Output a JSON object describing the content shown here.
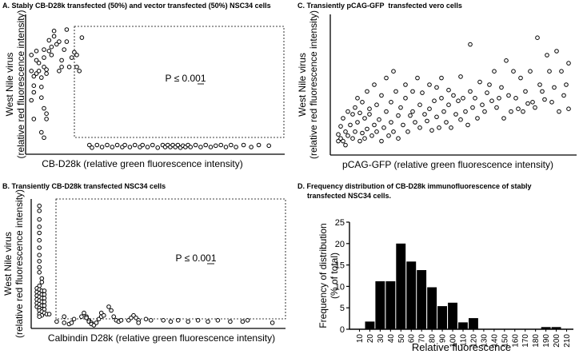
{
  "chart_data": [
    {
      "panel": "A",
      "type": "scatter",
      "title": "A. Stably CB-D28k transfected (50%) and vector transfected (50%) NSC34 cells",
      "xlabel": "CB-D28k (relative green fluorescence intensity)",
      "ylabel": [
        "West Nile virus",
        "(relative red fluorescence intensity)"
      ],
      "annotation": "P ≤ 0.001",
      "xlim": [
        0,
        100
      ],
      "ylim": [
        0,
        100
      ],
      "grid": false,
      "points": [
        [
          1,
          72
        ],
        [
          1,
          60
        ],
        [
          2,
          56
        ],
        [
          2,
          49
        ],
        [
          2,
          44
        ],
        [
          3,
          75
        ],
        [
          3,
          68
        ],
        [
          3,
          58
        ],
        [
          4,
          66
        ],
        [
          4,
          60
        ],
        [
          5,
          55
        ],
        [
          5,
          48
        ],
        [
          5,
          40
        ],
        [
          6,
          76
        ],
        [
          6,
          70
        ],
        [
          6,
          63
        ],
        [
          7,
          61
        ],
        [
          7,
          58
        ],
        [
          7,
          28
        ],
        [
          7,
          24
        ],
        [
          8,
          83
        ],
        [
          8,
          75
        ],
        [
          9,
          78
        ],
        [
          9,
          72
        ],
        [
          10,
          90
        ],
        [
          10,
          86
        ],
        [
          11,
          80
        ],
        [
          12,
          82
        ],
        [
          13,
          68
        ],
        [
          13,
          63
        ],
        [
          12,
          60
        ],
        [
          14,
          76
        ],
        [
          15,
          82
        ],
        [
          15,
          91
        ],
        [
          16,
          63
        ],
        [
          17,
          70
        ],
        [
          18,
          74
        ],
        [
          19,
          72
        ],
        [
          20,
          60
        ],
        [
          21,
          85
        ],
        [
          19,
          63
        ],
        [
          6,
          32
        ],
        [
          6,
          10
        ],
        [
          5,
          14
        ],
        [
          2,
          24
        ],
        [
          1,
          38
        ],
        [
          24,
          4.5
        ],
        [
          25,
          2.5
        ],
        [
          27,
          4.5
        ],
        [
          29,
          3
        ],
        [
          31,
          4.5
        ],
        [
          33,
          3
        ],
        [
          35,
          4.5
        ],
        [
          37,
          3
        ],
        [
          38,
          4.5
        ],
        [
          40,
          3
        ],
        [
          42,
          4.5
        ],
        [
          44,
          3
        ],
        [
          45,
          4.5
        ],
        [
          47,
          3
        ],
        [
          49,
          4.5
        ],
        [
          51,
          2.5
        ],
        [
          53,
          4.5
        ],
        [
          54,
          3
        ],
        [
          55,
          4.5
        ],
        [
          56,
          3
        ],
        [
          57,
          4.5
        ],
        [
          58,
          3
        ],
        [
          59,
          4.5
        ],
        [
          60,
          2.5
        ],
        [
          61,
          4
        ],
        [
          62,
          3
        ],
        [
          63,
          4.5
        ],
        [
          64,
          3
        ],
        [
          66,
          4.5
        ],
        [
          68,
          3
        ],
        [
          70,
          4.5
        ],
        [
          72,
          3
        ],
        [
          74,
          4
        ],
        [
          76,
          4.5
        ],
        [
          78,
          3
        ],
        [
          80,
          4.5
        ],
        [
          82,
          3
        ],
        [
          85,
          4.5
        ],
        [
          88,
          3
        ],
        [
          91,
          4.5
        ],
        [
          95,
          4
        ]
      ]
    },
    {
      "panel": "B",
      "type": "scatter",
      "title": "B. Transiently CB-D28k transfected NSC34 cells",
      "xlabel": "Calbindin D28k (relative green fluorescence intensity)",
      "ylabel": [
        "West Nile virus",
        "(relative red fluorescence intensity)"
      ],
      "annotation": "P ≤ 0.001",
      "xlim": [
        0,
        100
      ],
      "ylim": [
        0,
        100
      ],
      "grid": false,
      "points": [
        [
          2,
          97
        ],
        [
          2,
          93
        ],
        [
          2,
          86
        ],
        [
          2,
          80
        ],
        [
          2,
          75
        ],
        [
          2,
          69
        ],
        [
          2,
          63
        ],
        [
          2,
          57
        ],
        [
          2,
          52
        ],
        [
          2,
          47
        ],
        [
          2,
          43
        ],
        [
          3,
          38
        ],
        [
          3,
          35
        ],
        [
          2,
          32
        ],
        [
          1,
          30
        ],
        [
          2,
          29
        ],
        [
          3,
          28
        ],
        [
          4,
          28
        ],
        [
          1,
          27
        ],
        [
          2,
          26
        ],
        [
          3,
          25
        ],
        [
          4,
          25
        ],
        [
          1,
          24
        ],
        [
          2,
          23
        ],
        [
          3,
          22
        ],
        [
          4,
          22
        ],
        [
          1,
          21
        ],
        [
          2,
          20
        ],
        [
          3,
          19
        ],
        [
          4,
          19
        ],
        [
          1,
          18
        ],
        [
          2,
          17
        ],
        [
          3,
          16
        ],
        [
          4,
          16
        ],
        [
          1,
          15
        ],
        [
          2,
          14
        ],
        [
          3,
          13
        ],
        [
          4,
          13
        ],
        [
          2,
          12
        ],
        [
          3,
          11
        ],
        [
          4,
          10
        ],
        [
          2,
          9
        ],
        [
          3,
          8
        ],
        [
          2,
          7
        ],
        [
          5,
          9
        ],
        [
          6,
          9
        ],
        [
          9,
          3
        ],
        [
          12,
          7
        ],
        [
          12,
          2
        ],
        [
          14,
          1
        ],
        [
          15,
          2
        ],
        [
          16,
          5
        ],
        [
          19,
          7
        ],
        [
          20,
          10
        ],
        [
          21,
          7
        ],
        [
          21,
          6
        ],
        [
          22,
          4
        ],
        [
          22,
          3
        ],
        [
          23,
          2
        ],
        [
          23,
          1
        ],
        [
          24,
          0
        ],
        [
          25,
          2
        ],
        [
          26,
          5
        ],
        [
          27,
          7
        ],
        [
          27,
          10
        ],
        [
          28,
          8
        ],
        [
          30,
          15
        ],
        [
          31,
          12
        ],
        [
          32,
          7
        ],
        [
          33,
          4
        ],
        [
          34,
          3
        ],
        [
          35,
          4
        ],
        [
          38,
          4
        ],
        [
          39,
          6
        ],
        [
          40,
          8
        ],
        [
          41,
          6
        ],
        [
          42,
          4
        ],
        [
          42,
          2
        ],
        [
          45,
          5
        ],
        [
          47,
          4
        ],
        [
          52,
          4
        ],
        [
          55,
          3
        ],
        [
          58,
          4
        ],
        [
          62,
          3
        ],
        [
          66,
          4
        ],
        [
          70,
          3
        ],
        [
          74,
          4
        ],
        [
          79,
          3
        ],
        [
          84,
          3
        ],
        [
          86,
          4
        ],
        [
          96,
          2
        ]
      ]
    },
    {
      "panel": "C",
      "type": "scatter",
      "title": "C. Transiently pCAG-GFP  transfected vero cells",
      "xlabel": "pCAG-GFP (relative green fluorescence intensity)",
      "ylabel": [
        "West Nile virus",
        "(relative red fluorescence intensity)"
      ],
      "xlim": [
        0,
        100
      ],
      "ylim": [
        0,
        100
      ],
      "grid": false,
      "points": [
        [
          2,
          8
        ],
        [
          2,
          13
        ],
        [
          3,
          10
        ],
        [
          3,
          19
        ],
        [
          4,
          25
        ],
        [
          4,
          8
        ],
        [
          5,
          5
        ],
        [
          5,
          15
        ],
        [
          6,
          30
        ],
        [
          6,
          12
        ],
        [
          7,
          20
        ],
        [
          8,
          10
        ],
        [
          8,
          28
        ],
        [
          9,
          33
        ],
        [
          9,
          15
        ],
        [
          10,
          40
        ],
        [
          10,
          22
        ],
        [
          11,
          8
        ],
        [
          11,
          29
        ],
        [
          12,
          14
        ],
        [
          12,
          37
        ],
        [
          13,
          25
        ],
        [
          13,
          10
        ],
        [
          14,
          45
        ],
        [
          14,
          17
        ],
        [
          15,
          32
        ],
        [
          15,
          28
        ],
        [
          16,
          12
        ],
        [
          17,
          20
        ],
        [
          17,
          50
        ],
        [
          18,
          35
        ],
        [
          18,
          15
        ],
        [
          19,
          24
        ],
        [
          20,
          8
        ],
        [
          20,
          42
        ],
        [
          21,
          18
        ],
        [
          22,
          55
        ],
        [
          22,
          30
        ],
        [
          23,
          12
        ],
        [
          24,
          37
        ],
        [
          24,
          22
        ],
        [
          25,
          60
        ],
        [
          25,
          15
        ],
        [
          26,
          45
        ],
        [
          27,
          27
        ],
        [
          27,
          10
        ],
        [
          28,
          33
        ],
        [
          29,
          20
        ],
        [
          30,
          50
        ],
        [
          30,
          40
        ],
        [
          31,
          15
        ],
        [
          32,
          27
        ],
        [
          33,
          45
        ],
        [
          33,
          30
        ],
        [
          34,
          22
        ],
        [
          35,
          55
        ],
        [
          36,
          18
        ],
        [
          36,
          35
        ],
        [
          37,
          44
        ],
        [
          38,
          28
        ],
        [
          39,
          23
        ],
        [
          40,
          50
        ],
        [
          40,
          32
        ],
        [
          41,
          16
        ],
        [
          42,
          38
        ],
        [
          43,
          48
        ],
        [
          43,
          26
        ],
        [
          44,
          18
        ],
        [
          45,
          40
        ],
        [
          45,
          55
        ],
        [
          46,
          30
        ],
        [
          47,
          22
        ],
        [
          48,
          35
        ],
        [
          48,
          46
        ],
        [
          49,
          18
        ],
        [
          50,
          42
        ],
        [
          51,
          28
        ],
        [
          52,
          38
        ],
        [
          53,
          56
        ],
        [
          53,
          24
        ],
        [
          54,
          40
        ],
        [
          55,
          30
        ],
        [
          56,
          20
        ],
        [
          57,
          80
        ],
        [
          57,
          45
        ],
        [
          58,
          33
        ],
        [
          59,
          40
        ],
        [
          60,
          25
        ],
        [
          61,
          52
        ],
        [
          62,
          35
        ],
        [
          63,
          30
        ],
        [
          64,
          44
        ],
        [
          65,
          50
        ],
        [
          66,
          38
        ],
        [
          67,
          60
        ],
        [
          68,
          33
        ],
        [
          69,
          40
        ],
        [
          70,
          48
        ],
        [
          71,
          25
        ],
        [
          72,
          68
        ],
        [
          73,
          42
        ],
        [
          74,
          30
        ],
        [
          75,
          60
        ],
        [
          76,
          40
        ],
        [
          77,
          32
        ],
        [
          78,
          55
        ],
        [
          79,
          30
        ],
        [
          80,
          45
        ],
        [
          81,
          36
        ],
        [
          82,
          60
        ],
        [
          83,
          37
        ],
        [
          84,
          33
        ],
        [
          85,
          85
        ],
        [
          86,
          50
        ],
        [
          87,
          45
        ],
        [
          88,
          39
        ],
        [
          89,
          72
        ],
        [
          90,
          60
        ],
        [
          91,
          37
        ],
        [
          92,
          48
        ],
        [
          93,
          75
        ],
        [
          94,
          30
        ],
        [
          95,
          60
        ],
        [
          96,
          42
        ],
        [
          97,
          50
        ],
        [
          98,
          66
        ],
        [
          98,
          32
        ]
      ]
    },
    {
      "panel": "D",
      "type": "bar",
      "title": [
        "D. Frequency distribution of CB-D28k immunofluorescence of stably",
        "transfected NSC34 cells."
      ],
      "xlabel": "Relative fluorescence",
      "ylabel": [
        "Frequency of distribution",
        "(% of total)"
      ],
      "ylim": [
        0,
        25
      ],
      "yticks": [
        "0",
        "5",
        "10",
        "15",
        "20",
        "25"
      ],
      "categories": [
        "10",
        "20",
        "30",
        "40",
        "50",
        "60",
        "70",
        "80",
        "90",
        "100",
        "110",
        "120",
        "130",
        "140",
        "150",
        "160",
        "170",
        "180",
        "190",
        "200",
        "210"
      ],
      "values": [
        0,
        1.8,
        11.2,
        11.2,
        20,
        15.8,
        13.8,
        9.8,
        5.4,
        6.2,
        1.6,
        2.6,
        0,
        0,
        0,
        0,
        0,
        0,
        0.5,
        0.5,
        0
      ]
    }
  ]
}
